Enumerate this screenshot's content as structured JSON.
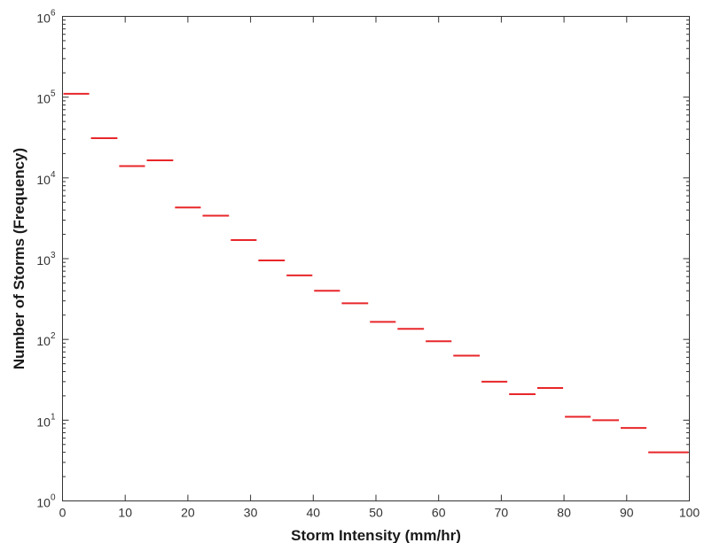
{
  "chart_data": {
    "type": "line",
    "style": "stepped-horizontal-segments",
    "title": "",
    "xlabel": "Storm Intensity (mm/hr)",
    "ylabel": "Number of Storms (Frequency)",
    "xlim": [
      0,
      100
    ],
    "ylim": [
      1,
      1000000
    ],
    "y_scale": "log",
    "grid": false,
    "x_ticks": [
      "0",
      "10",
      "20",
      "30",
      "40",
      "50",
      "60",
      "70",
      "80",
      "90",
      "100"
    ],
    "y_ticks": [
      {
        "base": "10",
        "exp": "0"
      },
      {
        "base": "10",
        "exp": "1"
      },
      {
        "base": "10",
        "exp": "2"
      },
      {
        "base": "10",
        "exp": "3"
      },
      {
        "base": "10",
        "exp": "4"
      },
      {
        "base": "10",
        "exp": "5"
      },
      {
        "base": "10",
        "exp": "6"
      }
    ],
    "series_color": "#e8262a",
    "bins": [
      {
        "x0": 0,
        "x1": 4.4,
        "y": 110000
      },
      {
        "x0": 4.4,
        "x1": 8.9,
        "y": 31000
      },
      {
        "x0": 8.9,
        "x1": 13.3,
        "y": 14000
      },
      {
        "x0": 13.3,
        "x1": 17.8,
        "y": 16500
      },
      {
        "x0": 17.8,
        "x1": 22.2,
        "y": 4300
      },
      {
        "x0": 22.2,
        "x1": 26.7,
        "y": 3400
      },
      {
        "x0": 26.7,
        "x1": 31.1,
        "y": 1700
      },
      {
        "x0": 31.1,
        "x1": 35.6,
        "y": 950
      },
      {
        "x0": 35.6,
        "x1": 40.0,
        "y": 620
      },
      {
        "x0": 40.0,
        "x1": 44.4,
        "y": 400
      },
      {
        "x0": 44.4,
        "x1": 48.9,
        "y": 280
      },
      {
        "x0": 48.9,
        "x1": 53.3,
        "y": 165
      },
      {
        "x0": 53.3,
        "x1": 57.8,
        "y": 135
      },
      {
        "x0": 57.8,
        "x1": 62.2,
        "y": 95
      },
      {
        "x0": 62.2,
        "x1": 66.7,
        "y": 63
      },
      {
        "x0": 66.7,
        "x1": 71.1,
        "y": 30
      },
      {
        "x0": 71.1,
        "x1": 75.6,
        "y": 21
      },
      {
        "x0": 75.6,
        "x1": 80.0,
        "y": 25
      },
      {
        "x0": 80.0,
        "x1": 84.4,
        "y": 11
      },
      {
        "x0": 84.4,
        "x1": 88.9,
        "y": 10
      },
      {
        "x0": 88.9,
        "x1": 93.3,
        "y": 8
      },
      {
        "x0": 93.3,
        "x1": 100,
        "y": 4
      }
    ]
  }
}
